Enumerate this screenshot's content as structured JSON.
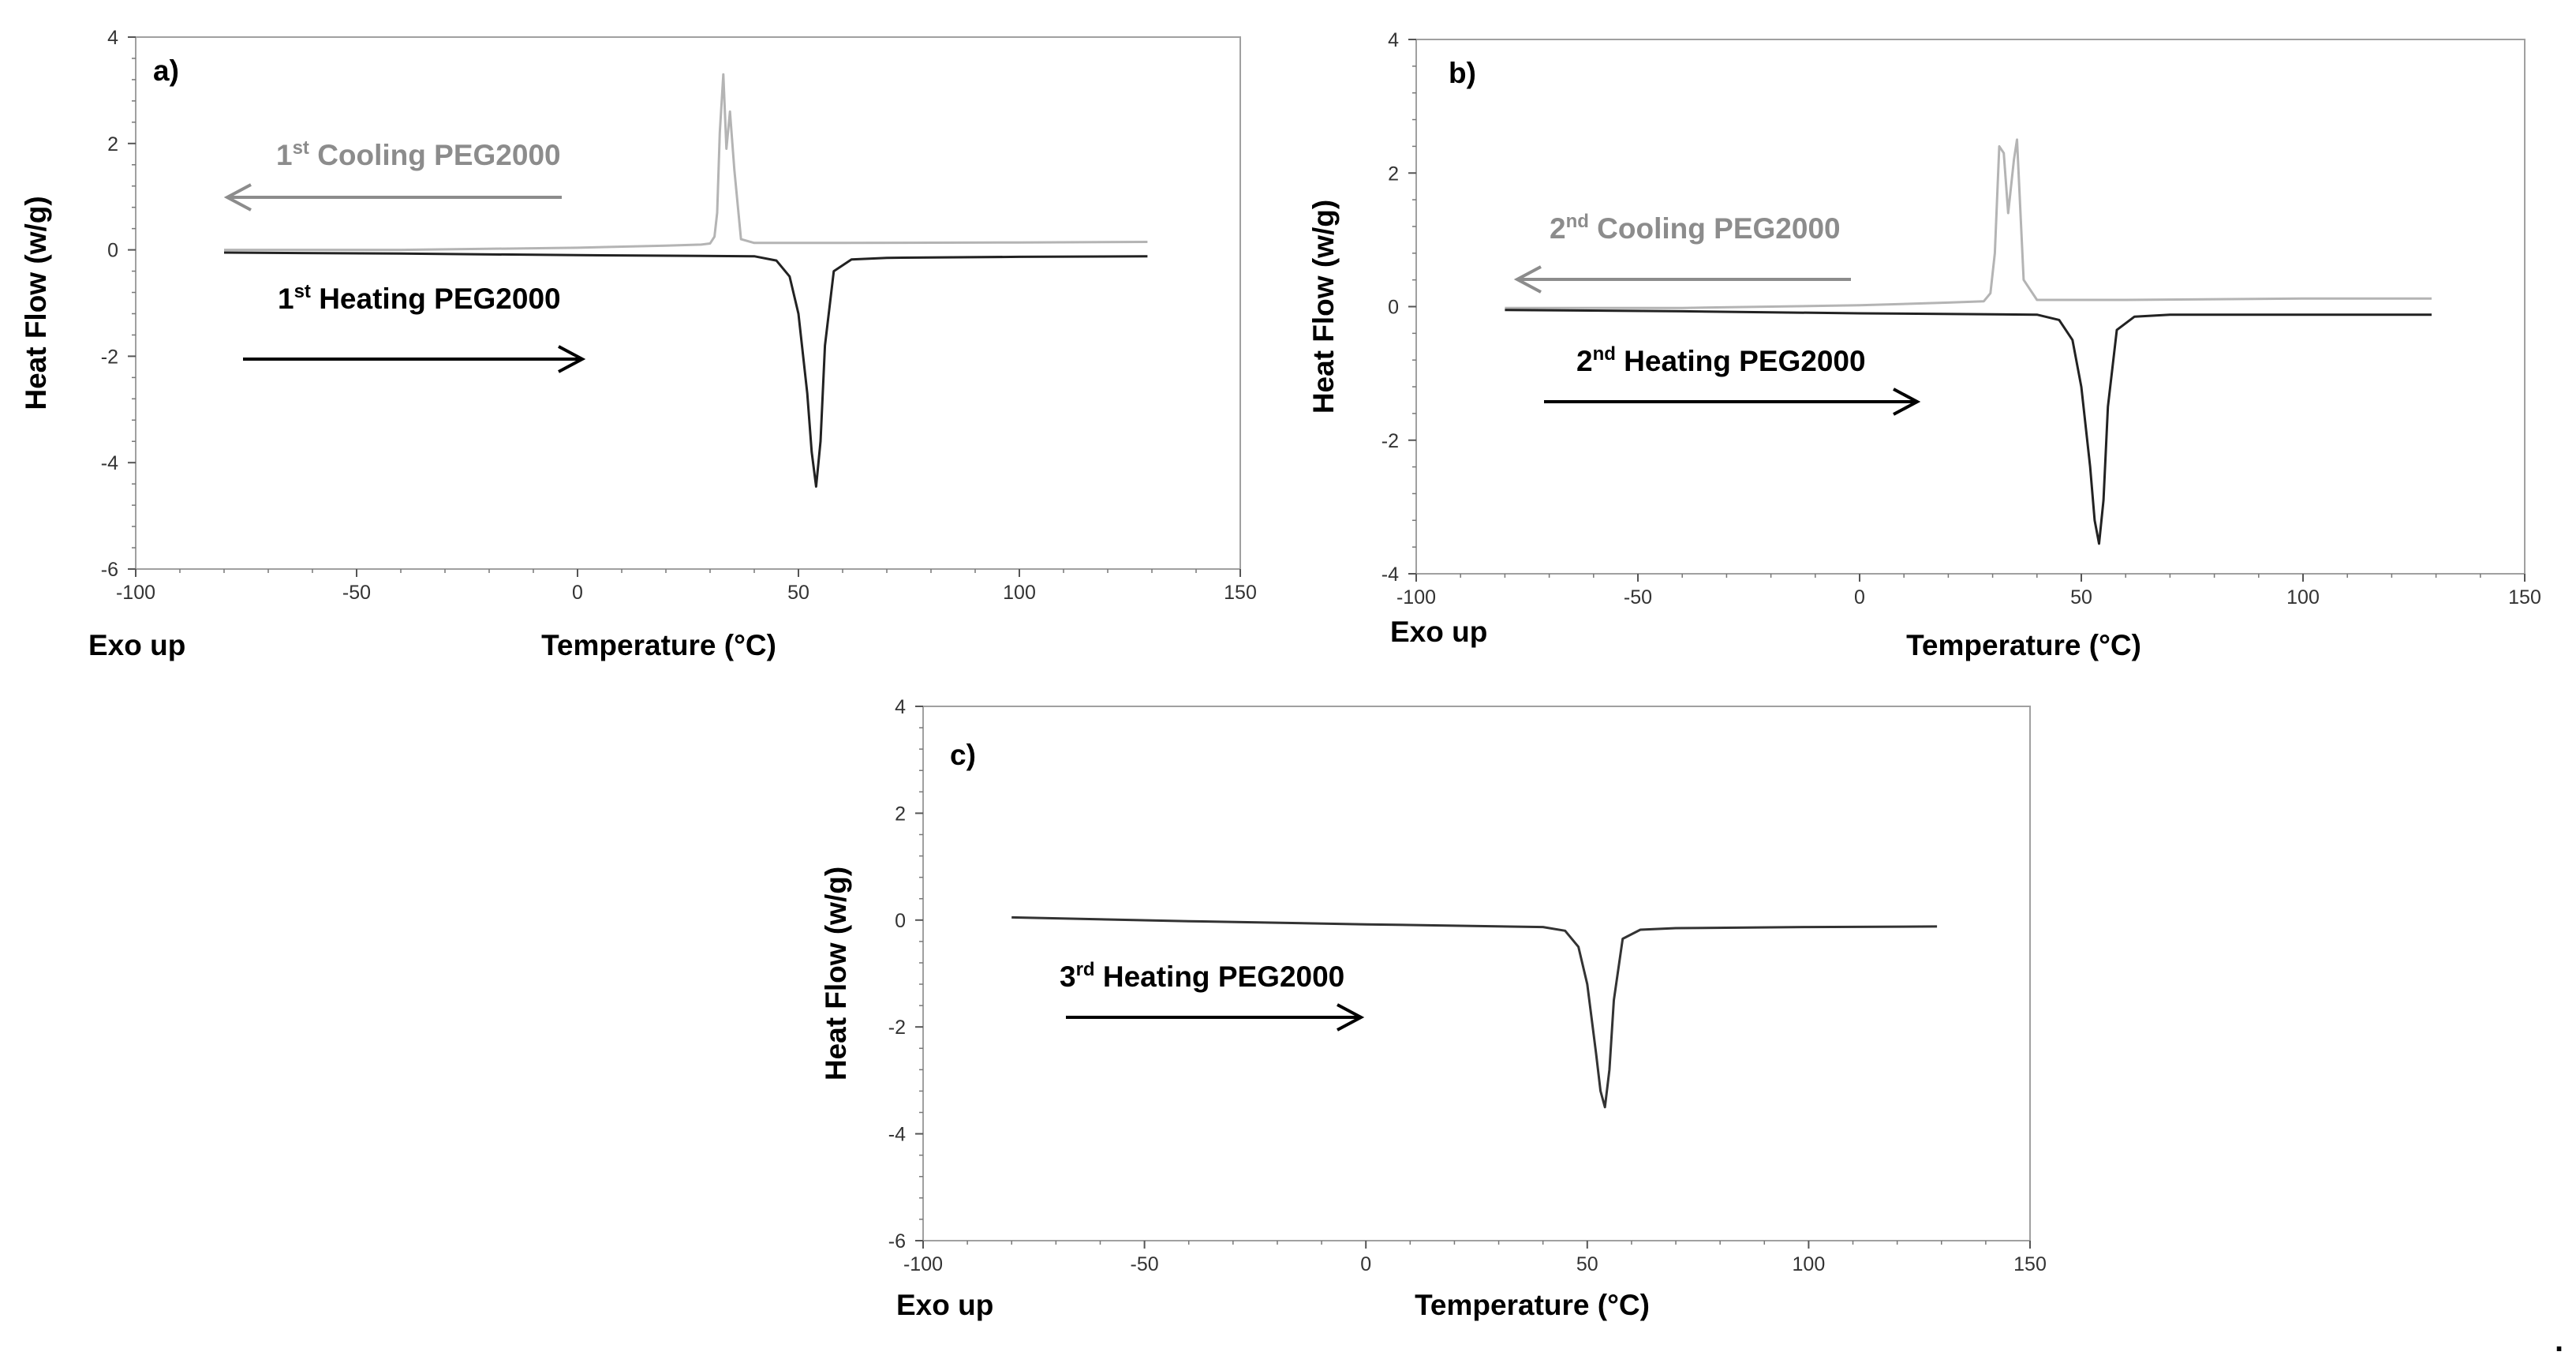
{
  "chart_data": [
    {
      "type": "line",
      "panel_label": "a)",
      "xlabel": "Temperature (°C)",
      "ylabel": "Heat Flow (w/g)",
      "corner_note": "Exo up",
      "xlim": [
        -100,
        150
      ],
      "ylim": [
        -6,
        4
      ],
      "xticks": [
        "-100",
        "-50",
        "0",
        "50",
        "100",
        "150"
      ],
      "yticks": [
        "4",
        "2",
        "0",
        "-2",
        "-4",
        "-6"
      ],
      "grid": false,
      "series": [
        {
          "name": "1st Cooling PEG2000",
          "color": "#b4b4b4",
          "x": [
            129,
            100,
            60,
            40,
            37,
            35.5,
            34.5,
            33.7,
            33,
            32.2,
            31.6,
            31,
            30,
            28,
            20,
            0,
            -40,
            -80
          ],
          "y": [
            0.15,
            0.14,
            0.13,
            0.13,
            0.2,
            1.5,
            2.6,
            1.9,
            3.3,
            2.2,
            0.7,
            0.25,
            0.12,
            0.1,
            0.08,
            0.04,
            0.0,
            0.0
          ]
        },
        {
          "name": "1st Heating PEG2000",
          "color": "#222222",
          "x": [
            -80,
            -40,
            0,
            40,
            45,
            48,
            50,
            52,
            53,
            54,
            55,
            56,
            58,
            62,
            70,
            100,
            129
          ],
          "y": [
            -0.05,
            -0.07,
            -0.1,
            -0.12,
            -0.2,
            -0.5,
            -1.2,
            -2.7,
            -3.8,
            -4.45,
            -3.6,
            -1.8,
            -0.4,
            -0.18,
            -0.15,
            -0.13,
            -0.12
          ]
        }
      ],
      "annotations": [
        {
          "pre": "1",
          "sup": "st",
          "post": " Cooling PEG2000",
          "direction": "left",
          "color": "#8c8c8c"
        },
        {
          "pre": "1",
          "sup": "st",
          "post": " Heating PEG2000",
          "direction": "right",
          "color": "#000000"
        }
      ]
    },
    {
      "type": "line",
      "panel_label": "b)",
      "xlabel": "Temperature (°C)",
      "ylabel": "Heat Flow (w/g)",
      "corner_note": "Exo up",
      "xlim": [
        -100,
        150
      ],
      "ylim": [
        -4,
        4
      ],
      "xticks": [
        "-100",
        "-50",
        "0",
        "50",
        "100",
        "150"
      ],
      "yticks": [
        "4",
        "2",
        "0",
        "-2",
        "-4"
      ],
      "grid": false,
      "series": [
        {
          "name": "2nd Cooling PEG2000",
          "color": "#b4b4b4",
          "x": [
            129,
            100,
            60,
            40,
            37,
            35.5,
            34.8,
            33.5,
            32.5,
            31.5,
            30.5,
            29.5,
            28,
            20,
            0,
            -40,
            -80
          ],
          "y": [
            0.12,
            0.12,
            0.1,
            0.1,
            0.4,
            2.5,
            2.2,
            1.4,
            2.3,
            2.4,
            0.8,
            0.2,
            0.08,
            0.06,
            0.02,
            -0.02,
            -0.02
          ]
        },
        {
          "name": "2nd Heating PEG2000",
          "color": "#222222",
          "x": [
            -80,
            -40,
            0,
            40,
            45,
            48,
            50,
            52,
            53,
            54,
            55,
            56,
            58,
            62,
            70,
            100,
            129
          ],
          "y": [
            -0.05,
            -0.07,
            -0.1,
            -0.12,
            -0.2,
            -0.5,
            -1.2,
            -2.4,
            -3.2,
            -3.55,
            -2.9,
            -1.5,
            -0.35,
            -0.15,
            -0.12,
            -0.12,
            -0.12
          ]
        }
      ],
      "annotations": [
        {
          "pre": "2",
          "sup": "nd",
          "post": " Cooling PEG2000",
          "direction": "left",
          "color": "#8c8c8c"
        },
        {
          "pre": "2",
          "sup": "nd",
          "post": " Heating PEG2000",
          "direction": "right",
          "color": "#000000"
        }
      ]
    },
    {
      "type": "line",
      "panel_label": "c)",
      "xlabel": "Temperature (°C)",
      "ylabel": "Heat Flow (w/g)",
      "corner_note": "Exo up",
      "xlim": [
        -100,
        150
      ],
      "ylim": [
        -6,
        4
      ],
      "xticks": [
        "-100",
        "-50",
        "0",
        "50",
        "100",
        "150"
      ],
      "yticks": [
        "4",
        "2",
        "0",
        "-2",
        "-4",
        "-6"
      ],
      "grid": false,
      "series": [
        {
          "name": "3rd Heating PEG2000",
          "color": "#333333",
          "x": [
            -80,
            -40,
            0,
            40,
            45,
            48,
            50,
            52,
            53,
            54,
            55,
            56,
            58,
            62,
            70,
            100,
            129
          ],
          "y": [
            0.05,
            -0.02,
            -0.08,
            -0.13,
            -0.2,
            -0.5,
            -1.2,
            -2.5,
            -3.2,
            -3.5,
            -2.8,
            -1.5,
            -0.35,
            -0.18,
            -0.15,
            -0.13,
            -0.12
          ]
        }
      ],
      "annotations": [
        {
          "pre": "3",
          "sup": "rd",
          "post": " Heating PEG2000",
          "direction": "right",
          "color": "#000000"
        }
      ]
    }
  ],
  "trailing_mark": "."
}
